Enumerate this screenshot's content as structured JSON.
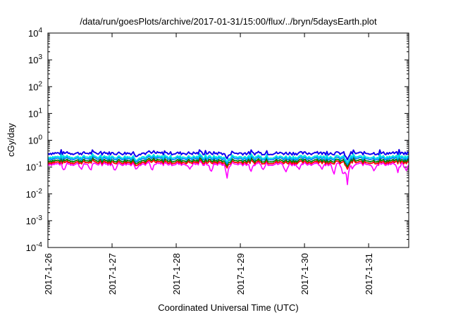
{
  "chart_data": {
    "type": "line",
    "title": "/data/run/goesPlots/archive/2017-01-31/15:00/flux/../bryn/5daysEarth.plot",
    "xlabel": "Coordinated Universal Time (UTC)",
    "ylabel": "cGy/day",
    "y_scale": "log",
    "ylim": [
      0.0001,
      10000
    ],
    "y_ticks": [
      {
        "value": 0.0001,
        "base": "10",
        "exp": "-4"
      },
      {
        "value": 0.001,
        "base": "10",
        "exp": "-3"
      },
      {
        "value": 0.01,
        "base": "10",
        "exp": "-2"
      },
      {
        "value": 0.1,
        "base": "10",
        "exp": "-1"
      },
      {
        "value": 1,
        "base": "10",
        "exp": "0"
      },
      {
        "value": 10,
        "base": "10",
        "exp": "1"
      },
      {
        "value": 100,
        "base": "10",
        "exp": "2"
      },
      {
        "value": 1000,
        "base": "10",
        "exp": "3"
      },
      {
        "value": 10000,
        "base": "10",
        "exp": "4"
      }
    ],
    "xlim": [
      "2017-01-26T00:00",
      "2017-01-31T15:00"
    ],
    "x_ticks": [
      "2017-1-26",
      "2017-1-27",
      "2017-1-28",
      "2017-1-29",
      "2017-1-30",
      "2017-1-31"
    ],
    "grid": false,
    "legend": "none",
    "series": [
      {
        "color": "#ff00ff",
        "base": 0.13,
        "dips": [
          [
            "2017-01-26T06:00",
            0.07
          ],
          [
            "2017-01-26T12:30",
            0.08
          ],
          [
            "2017-01-26T16:00",
            0.07
          ],
          [
            "2017-01-27T01:00",
            0.07
          ],
          [
            "2017-01-27T09:00",
            0.08
          ],
          [
            "2017-01-27T15:00",
            0.07
          ],
          [
            "2017-01-28T05:00",
            0.08
          ],
          [
            "2017-01-28T13:00",
            0.06
          ],
          [
            "2017-01-28T19:00",
            0.035
          ],
          [
            "2017-01-29T04:00",
            0.065
          ],
          [
            "2017-01-29T08:30",
            0.08
          ],
          [
            "2017-01-29T17:00",
            0.06
          ],
          [
            "2017-01-29T22:00",
            0.08
          ],
          [
            "2017-01-30T06:30",
            0.08
          ],
          [
            "2017-01-30T11:00",
            0.05
          ],
          [
            "2017-01-30T14:30",
            0.04
          ],
          [
            "2017-01-30T16:00",
            0.017
          ],
          [
            "2017-01-30T18:00",
            0.08
          ],
          [
            "2017-01-31T02:00",
            0.07
          ],
          [
            "2017-01-31T11:00",
            0.06
          ],
          [
            "2017-01-31T14:00",
            0.07
          ]
        ]
      },
      {
        "color": "#ff0000",
        "base": 0.15,
        "dips": [
          [
            "2017-01-27T09:00",
            0.11
          ],
          [
            "2017-01-28T19:00",
            0.09
          ],
          [
            "2017-01-30T16:00",
            0.08
          ]
        ]
      },
      {
        "color": "#008000",
        "base": 0.175,
        "dips": [
          [
            "2017-01-27T09:00",
            0.13
          ],
          [
            "2017-01-28T19:00",
            0.11
          ],
          [
            "2017-01-30T16:00",
            0.1
          ]
        ]
      },
      {
        "color": "#0080ff",
        "base": 0.21,
        "dips": [
          [
            "2017-01-27T09:00",
            0.15
          ],
          [
            "2017-01-28T19:00",
            0.13
          ],
          [
            "2017-01-30T16:00",
            0.12
          ]
        ]
      },
      {
        "color": "#00e5e5",
        "base": 0.24,
        "dips": [
          [
            "2017-01-27T09:00",
            0.17
          ],
          [
            "2017-01-28T19:00",
            0.15
          ],
          [
            "2017-01-30T16:00",
            0.14
          ]
        ]
      },
      {
        "color": "#ff0000",
        "base": 0.33,
        "dips": [
          [
            "2017-01-27T09:00",
            0.24
          ],
          [
            "2017-01-28T19:00",
            0.2
          ],
          [
            "2017-01-30T16:00",
            0.18
          ]
        ]
      },
      {
        "color": "#0000ff",
        "base": 0.33,
        "dips": [
          [
            "2017-01-27T09:00",
            0.24
          ],
          [
            "2017-01-28T19:00",
            0.2
          ],
          [
            "2017-01-30T16:00",
            0.18
          ]
        ]
      }
    ]
  }
}
